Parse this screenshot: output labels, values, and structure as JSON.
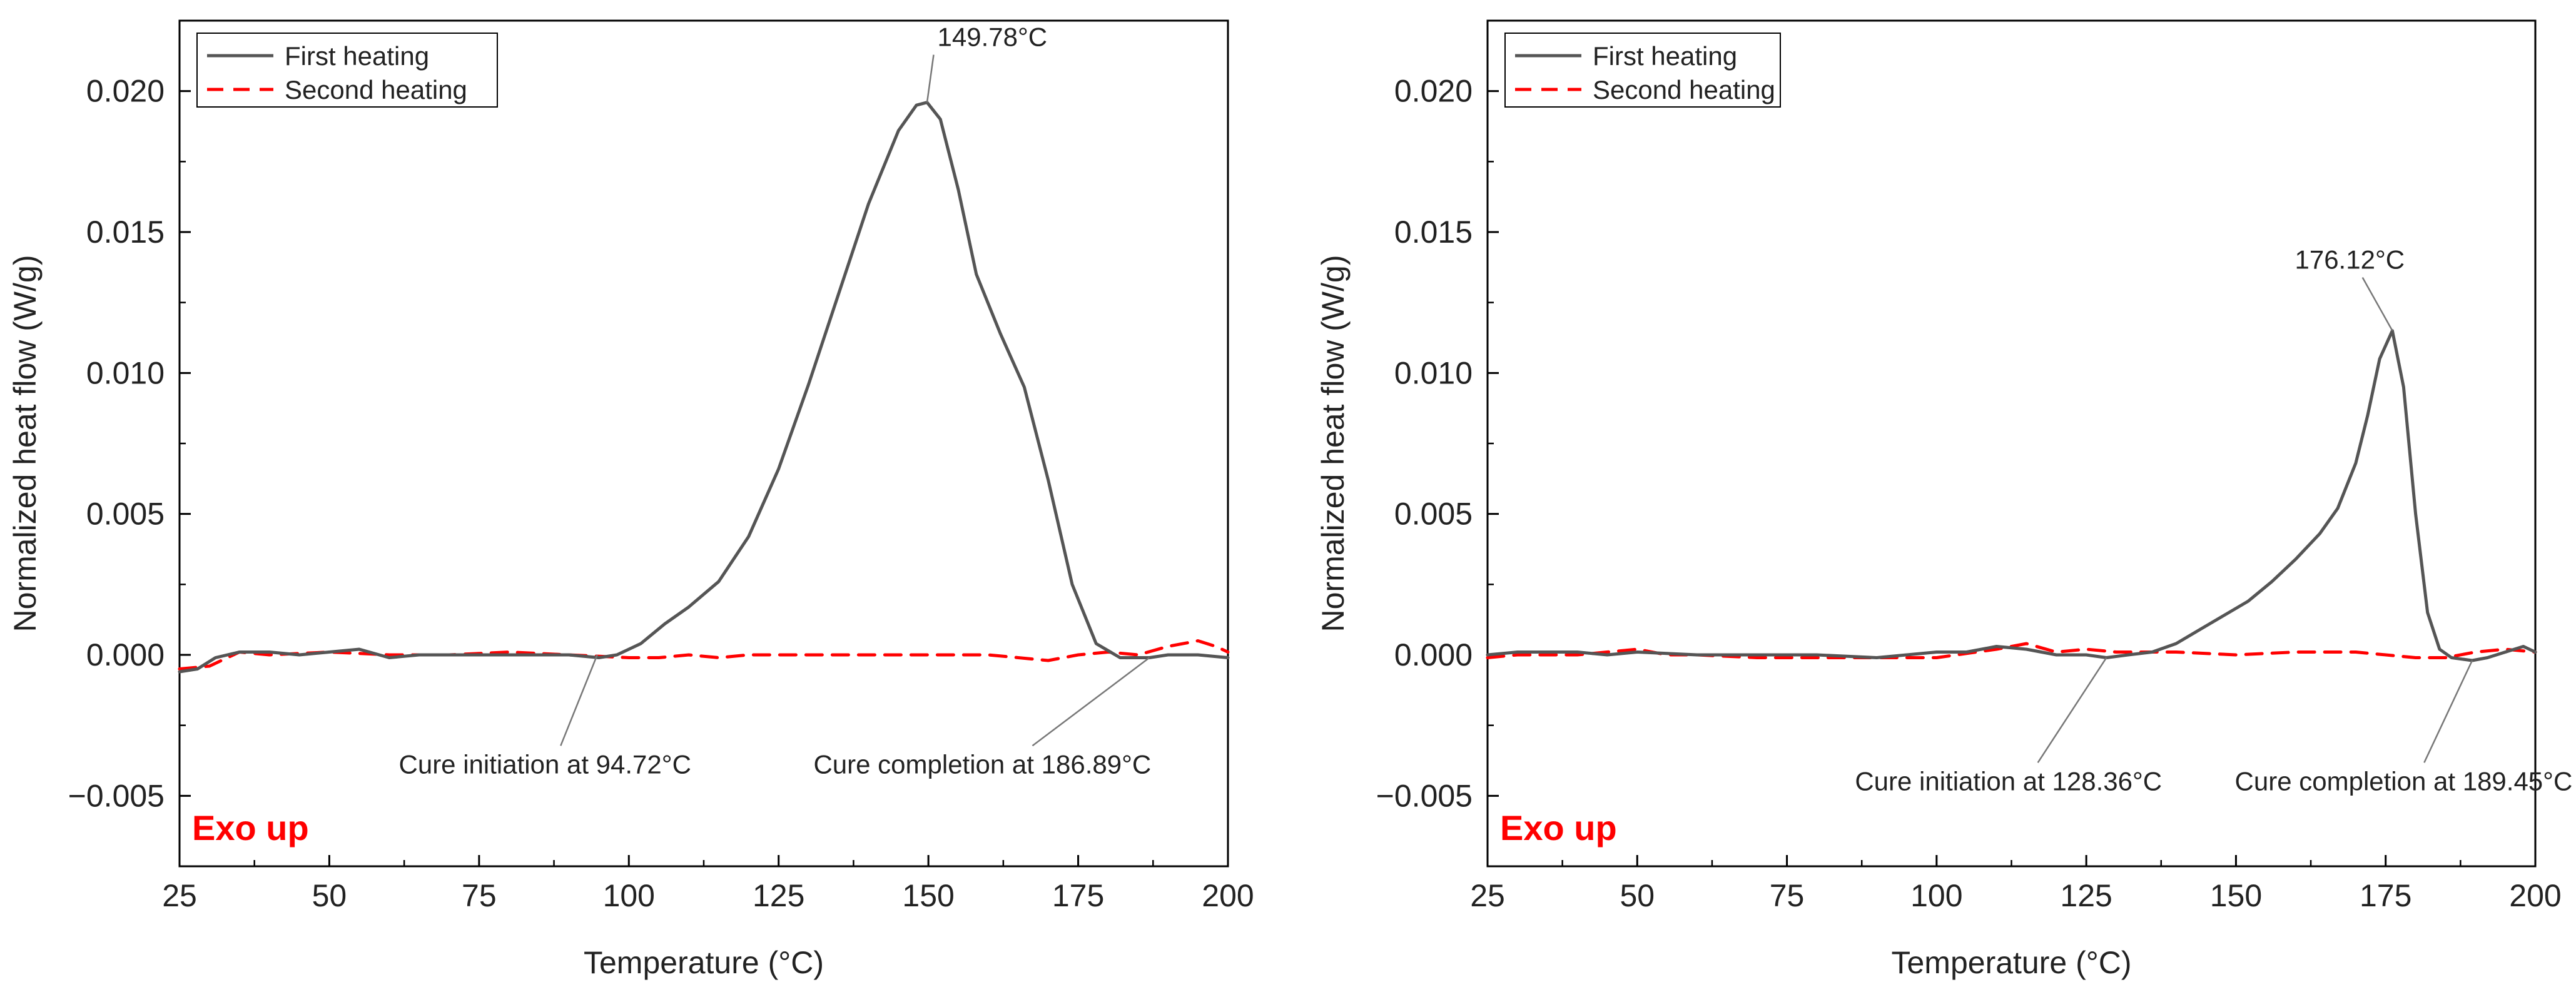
{
  "chart_data": [
    {
      "type": "line",
      "panel": "left",
      "xlabel": "Temperature (°C)",
      "ylabel": "Normalized heat flow (W/g)",
      "xlim": [
        25,
        200
      ],
      "ylim": [
        -0.0075,
        0.0225
      ],
      "xticks": [
        25,
        50,
        75,
        100,
        125,
        150,
        175,
        200
      ],
      "xtick_labels": [
        "25",
        "50",
        "75",
        "100",
        "125",
        "150",
        "175",
        "200"
      ],
      "yticks": [
        -0.005,
        0.0,
        0.005,
        0.01,
        0.015,
        0.02
      ],
      "ytick_labels": [
        "−0.005",
        "0.000",
        "0.005",
        "0.010",
        "0.015",
        "0.020"
      ],
      "legend": {
        "position": "top-left",
        "entries": [
          "First heating",
          "Second heating"
        ]
      },
      "series": [
        {
          "name": "First heating",
          "color": "#555555",
          "style": "solid",
          "x": [
            25,
            28,
            31,
            35,
            40,
            45,
            50,
            55,
            60,
            65,
            70,
            80,
            90,
            95,
            98,
            102,
            106,
            110,
            115,
            120,
            125,
            130,
            135,
            140,
            145,
            148,
            149.78,
            152,
            155,
            158,
            162,
            166,
            170,
            174,
            178,
            182,
            184,
            186.89,
            190,
            195,
            200
          ],
          "y": [
            -0.0006,
            -0.0005,
            -0.0001,
            0.0001,
            0.0001,
            0.0,
            0.0001,
            0.0002,
            -0.0001,
            0.0,
            0.0,
            0.0,
            0.0,
            -0.0001,
            0.0,
            0.0004,
            0.0011,
            0.0017,
            0.0026,
            0.0042,
            0.0066,
            0.0096,
            0.0128,
            0.016,
            0.0186,
            0.0195,
            0.0196,
            0.019,
            0.0165,
            0.0135,
            0.0114,
            0.0095,
            0.0062,
            0.0025,
            0.0004,
            -0.0001,
            -0.0001,
            -0.0001,
            0.0,
            0.0,
            -0.0001
          ]
        },
        {
          "name": "Second heating",
          "color": "#ff0000",
          "style": "dashed",
          "x": [
            25,
            30,
            35,
            40,
            50,
            60,
            70,
            80,
            90,
            100,
            105,
            110,
            115,
            120,
            130,
            140,
            150,
            160,
            165,
            170,
            175,
            180,
            185,
            190,
            195,
            198,
            200
          ],
          "y": [
            -0.0005,
            -0.0004,
            0.0001,
            0.0,
            0.0001,
            0.0,
            0.0,
            0.0001,
            0.0,
            -0.0001,
            -0.0001,
            0.0,
            -0.0001,
            0.0,
            0.0,
            0.0,
            0.0,
            0.0,
            -0.0001,
            -0.0002,
            0.0,
            0.0001,
            0.0,
            0.0003,
            0.0005,
            0.0003,
            0.0001
          ]
        }
      ],
      "annotations": [
        {
          "text": "149.78°C",
          "target": [
            149.78,
            0.0196
          ],
          "label_at": [
            151.5,
            0.0216
          ],
          "align": "start"
        },
        {
          "text": "Cure initiation at 94.72°C",
          "target": [
            94.72,
            0.0
          ],
          "label_at": [
            86,
            -0.0042
          ],
          "align": "middle"
        },
        {
          "text": "Cure completion at 186.89°C",
          "target": [
            186.89,
            -0.0001
          ],
          "label_at": [
            159,
            -0.0042
          ],
          "align": "middle"
        }
      ],
      "corner_note": "Exo up"
    },
    {
      "type": "line",
      "panel": "right",
      "xlabel": "Temperature (°C)",
      "ylabel": "Normalized heat flow (W/g)",
      "xlim": [
        25,
        200
      ],
      "ylim": [
        -0.0075,
        0.0225
      ],
      "xticks": [
        25,
        50,
        75,
        100,
        125,
        150,
        175,
        200
      ],
      "xtick_labels": [
        "25",
        "50",
        "75",
        "100",
        "125",
        "150",
        "175",
        "200"
      ],
      "yticks": [
        -0.005,
        0.0,
        0.005,
        0.01,
        0.015,
        0.02
      ],
      "ytick_labels": [
        "−0.005",
        "0.000",
        "0.005",
        "0.010",
        "0.015",
        "0.020"
      ],
      "legend": {
        "position": "top-left",
        "entries": [
          "First heating",
          "Second heating"
        ]
      },
      "series": [
        {
          "name": "First heating",
          "color": "#555555",
          "style": "solid",
          "x": [
            25,
            30,
            35,
            40,
            45,
            50,
            60,
            70,
            80,
            90,
            100,
            105,
            110,
            115,
            120,
            125,
            128.36,
            132,
            136,
            140,
            144,
            148,
            152,
            156,
            160,
            164,
            167,
            170,
            172,
            174,
            176.12,
            178,
            180,
            182,
            184,
            186,
            189.45,
            192,
            195,
            198,
            200
          ],
          "y": [
            0.0,
            0.0001,
            0.0001,
            0.0001,
            0.0,
            0.0001,
            0.0,
            0.0,
            0.0,
            -0.0001,
            0.0001,
            0.0001,
            0.0003,
            0.0002,
            0.0,
            0.0,
            -0.0001,
            0.0,
            0.0001,
            0.0004,
            0.0009,
            0.0014,
            0.0019,
            0.0026,
            0.0034,
            0.0043,
            0.0052,
            0.0068,
            0.0085,
            0.0105,
            0.0115,
            0.0095,
            0.005,
            0.0015,
            0.0002,
            -0.0001,
            -0.0002,
            -0.0001,
            0.0001,
            0.0003,
            0.0001
          ]
        },
        {
          "name": "Second heating",
          "color": "#ff0000",
          "style": "dashed",
          "x": [
            25,
            30,
            40,
            50,
            55,
            60,
            70,
            80,
            90,
            100,
            110,
            115,
            120,
            125,
            130,
            140,
            150,
            160,
            170,
            180,
            185,
            190,
            195,
            200
          ],
          "y": [
            -0.0001,
            0.0,
            0.0,
            0.0002,
            0.0,
            0.0,
            -0.0001,
            -0.0001,
            -0.0001,
            -0.0001,
            0.0002,
            0.0004,
            0.0001,
            0.0002,
            0.0001,
            0.0001,
            0.0,
            0.0001,
            0.0001,
            -0.0001,
            -0.0001,
            0.0001,
            0.0002,
            0.0001
          ]
        }
      ],
      "annotations": [
        {
          "text": "176.12°C",
          "target": [
            176.12,
            0.0115
          ],
          "label_at": [
            169,
            0.0137
          ],
          "align": "middle"
        },
        {
          "text": "Cure initiation at 128.36°C",
          "target": [
            128.36,
            -0.0001
          ],
          "label_at": [
            112,
            -0.0048
          ],
          "align": "middle"
        },
        {
          "text": "Cure completion at 189.45°C",
          "target": [
            189.45,
            -0.0002
          ],
          "label_at": [
            178,
            -0.0048
          ],
          "align": "middle"
        }
      ],
      "corner_note": "Exo up"
    }
  ]
}
